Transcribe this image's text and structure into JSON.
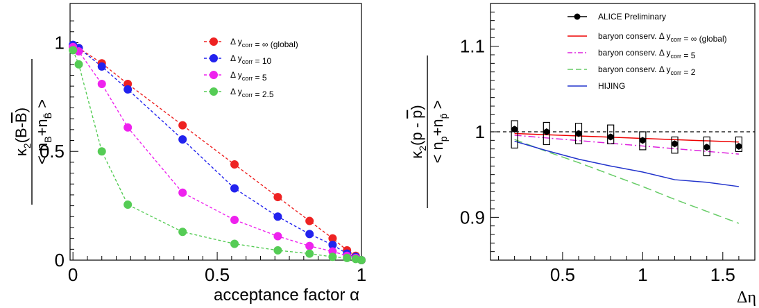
{
  "chart_data": [
    {
      "type": "scatter",
      "xlabel": "acceptance factor α",
      "ylabel_numerator": "κ2(B-B̄)",
      "ylabel_denominator": "< nB+nB̄ >",
      "xlim": [
        -0.01,
        1.0
      ],
      "ylim": [
        0,
        1.18
      ],
      "x_ticks": [
        {
          "v": 0,
          "label": "0"
        },
        {
          "v": 0.5,
          "label": "0.5"
        },
        {
          "v": 1,
          "label": "1"
        }
      ],
      "y_ticks": [
        {
          "v": 0,
          "label": "0"
        },
        {
          "v": 0.5,
          "label": "0.5"
        },
        {
          "v": 1,
          "label": "1"
        }
      ],
      "legend_position": "top-right",
      "series": [
        {
          "name": "Δ y_corr = ∞ (global)",
          "color": "#ee2222",
          "x": [
            0,
            0.02,
            0.1,
            0.19,
            0.38,
            0.56,
            0.71,
            0.82,
            0.9,
            0.95,
            0.98,
            1.0
          ],
          "y": [
            0.98,
            0.975,
            0.905,
            0.81,
            0.62,
            0.44,
            0.29,
            0.18,
            0.1,
            0.045,
            0.02,
            0.0
          ]
        },
        {
          "name": "Δ y_corr = 10",
          "color": "#2222ee",
          "x": [
            0,
            0.02,
            0.1,
            0.19,
            0.38,
            0.56,
            0.71,
            0.82,
            0.9,
            0.95,
            0.98,
            1.0
          ],
          "y": [
            0.99,
            0.975,
            0.89,
            0.785,
            0.555,
            0.33,
            0.2,
            0.12,
            0.07,
            0.03,
            0.015,
            0.0
          ]
        },
        {
          "name": "Δ y_corr = 5",
          "color": "#ee22ee",
          "x": [
            0,
            0.02,
            0.1,
            0.19,
            0.38,
            0.56,
            0.71,
            0.82,
            0.9,
            0.95,
            0.98,
            1.0
          ],
          "y": [
            0.98,
            0.96,
            0.81,
            0.61,
            0.31,
            0.185,
            0.11,
            0.065,
            0.04,
            0.02,
            0.01,
            0.0
          ]
        },
        {
          "name": "Δ y_corr = 2.5",
          "color": "#55cc55",
          "x": [
            0,
            0.02,
            0.1,
            0.19,
            0.38,
            0.56,
            0.71,
            0.82,
            0.9,
            0.95,
            0.98,
            1.0
          ],
          "y": [
            0.965,
            0.9,
            0.5,
            0.255,
            0.13,
            0.075,
            0.045,
            0.03,
            0.015,
            0.01,
            0.005,
            0.0
          ]
        }
      ]
    },
    {
      "type": "line",
      "xlabel": "Δη",
      "ylabel_numerator": "κ2(p - p̄)",
      "ylabel_denominator": "< np+np̄ >",
      "xlim": [
        0.05,
        1.7
      ],
      "ylim": [
        0.85,
        1.15
      ],
      "x_ticks": [
        {
          "v": 0.5,
          "label": "0.5"
        },
        {
          "v": 1,
          "label": "1"
        },
        {
          "v": 1.5,
          "label": "1.5"
        }
      ],
      "y_ticks": [
        {
          "v": 0.9,
          "label": "0.9"
        },
        {
          "v": 1.0,
          "label": "1"
        },
        {
          "v": 1.1,
          "label": "1.1"
        }
      ],
      "reference_line": 1.0,
      "legend_position": "top-right",
      "data_points": {
        "name": "ALICE Preliminary",
        "x": [
          0.2,
          0.4,
          0.6,
          0.8,
          1.0,
          1.2,
          1.4,
          1.6
        ],
        "y": [
          1.003,
          1.0,
          0.998,
          0.994,
          0.99,
          0.986,
          0.982,
          0.983
        ],
        "stat_err": [
          0.004,
          0.004,
          0.004,
          0.004,
          0.004,
          0.004,
          0.004,
          0.004
        ],
        "sys_low": [
          0.981,
          0.985,
          0.986,
          0.986,
          0.979,
          0.975,
          0.972,
          0.977
        ],
        "sys_high": [
          1.013,
          1.011,
          1.01,
          1.008,
          1.0,
          0.994,
          0.994,
          0.994
        ]
      },
      "series": [
        {
          "name": "baryon conserv. Δ y_corr = ∞ (global)",
          "color": "#ee0000",
          "dash": "solid",
          "x": [
            0.2,
            1.6
          ],
          "y": [
            0.998,
            0.988
          ]
        },
        {
          "name": "baryon conserv. Δ y_corr = 5",
          "color": "#dd22dd",
          "dash": "dashdot",
          "x": [
            0.2,
            1.6
          ],
          "y": [
            0.996,
            0.974
          ]
        },
        {
          "name": "baryon conserv. Δ y_corr = 2",
          "color": "#66cc66",
          "dash": "dashed",
          "x": [
            0.2,
            0.4,
            0.6,
            0.8,
            1.0,
            1.2,
            1.4,
            1.6
          ],
          "y": [
            0.991,
            0.977,
            0.964,
            0.95,
            0.936,
            0.921,
            0.907,
            0.893
          ]
        },
        {
          "name": "HIJING",
          "color": "#2233cc",
          "dash": "solid",
          "x": [
            0.2,
            0.4,
            0.6,
            0.8,
            1.0,
            1.2,
            1.4,
            1.6
          ],
          "y": [
            0.989,
            0.978,
            0.968,
            0.96,
            0.953,
            0.944,
            0.941,
            0.936
          ]
        }
      ]
    }
  ]
}
